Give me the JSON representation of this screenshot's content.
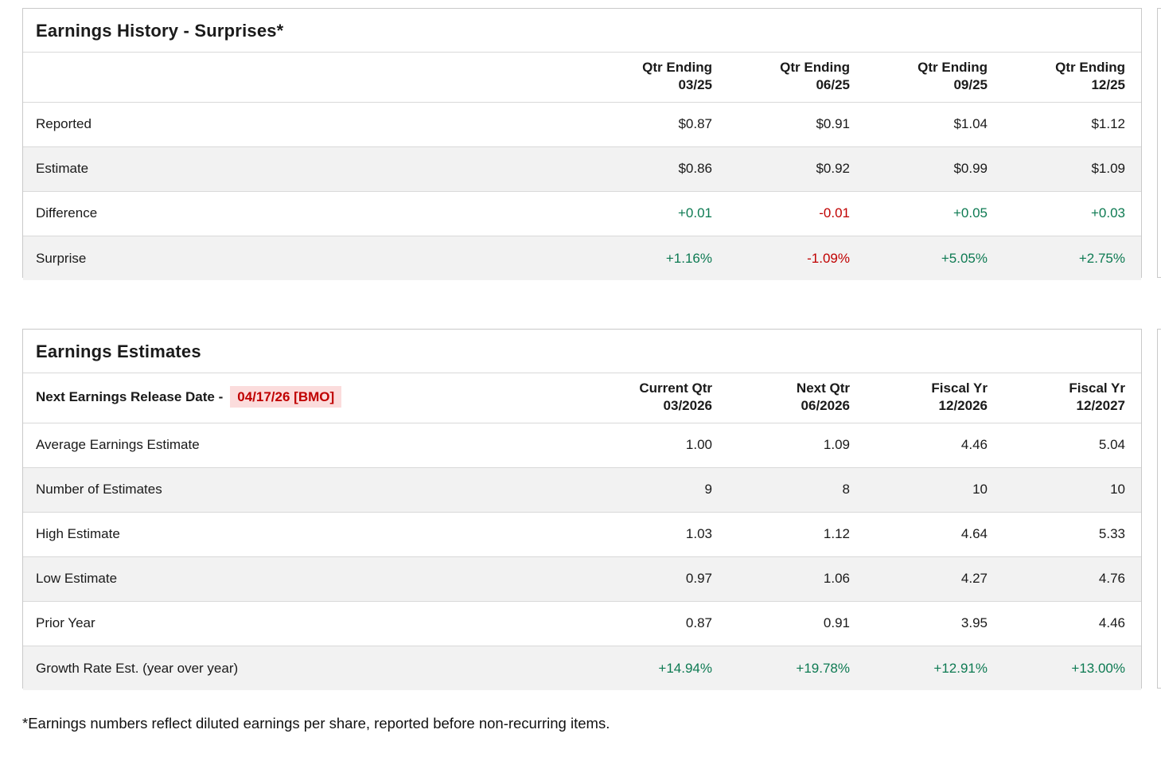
{
  "colors": {
    "positive": "#0d7a52",
    "negative": "#c00000",
    "highlight_bg": "#fbdcdc",
    "card_border": "#c9c9c9",
    "alt_row_bg": "#f2f2f2"
  },
  "earnings_history": {
    "title": "Earnings History - Surprises*",
    "columns": [
      {
        "top": "Qtr Ending",
        "bottom": "03/25"
      },
      {
        "top": "Qtr Ending",
        "bottom": "06/25"
      },
      {
        "top": "Qtr Ending",
        "bottom": "09/25"
      },
      {
        "top": "Qtr Ending",
        "bottom": "12/25"
      }
    ],
    "rows": [
      {
        "label": "Reported",
        "values": [
          "$0.87",
          "$0.91",
          "$1.04",
          "$1.12"
        ]
      },
      {
        "label": "Estimate",
        "values": [
          "$0.86",
          "$0.92",
          "$0.99",
          "$1.09"
        ]
      },
      {
        "label": "Difference",
        "values": [
          "+0.01",
          "-0.01",
          "+0.05",
          "+0.03"
        ],
        "tones": [
          "p",
          "n",
          "p",
          "p"
        ]
      },
      {
        "label": "Surprise",
        "values": [
          "+1.16%",
          "-1.09%",
          "+5.05%",
          "+2.75%"
        ],
        "tones": [
          "p",
          "n",
          "p",
          "p"
        ]
      }
    ]
  },
  "earnings_estimates": {
    "title": "Earnings Estimates",
    "corner": {
      "label": "Next Earnings Release Date -",
      "value": "04/17/26 [BMO]"
    },
    "columns": [
      {
        "top": "Current Qtr",
        "bottom": "03/2026"
      },
      {
        "top": "Next Qtr",
        "bottom": "06/2026"
      },
      {
        "top": "Fiscal Yr",
        "bottom": "12/2026"
      },
      {
        "top": "Fiscal Yr",
        "bottom": "12/2027"
      }
    ],
    "rows": [
      {
        "label": "Average Earnings Estimate",
        "values": [
          "1.00",
          "1.09",
          "4.46",
          "5.04"
        ]
      },
      {
        "label": "Number of Estimates",
        "values": [
          "9",
          "8",
          "10",
          "10"
        ]
      },
      {
        "label": "High Estimate",
        "values": [
          "1.03",
          "1.12",
          "4.64",
          "5.33"
        ]
      },
      {
        "label": "Low Estimate",
        "values": [
          "0.97",
          "1.06",
          "4.27",
          "4.76"
        ]
      },
      {
        "label": "Prior Year",
        "values": [
          "0.87",
          "0.91",
          "3.95",
          "4.46"
        ]
      },
      {
        "label": "Growth Rate Est. (year over year)",
        "values": [
          "+14.94%",
          "+19.78%",
          "+12.91%",
          "+13.00%"
        ],
        "tones": [
          "p",
          "p",
          "p",
          "p"
        ]
      }
    ]
  },
  "footnote": "*Earnings numbers reflect diluted earnings per share, reported before non-recurring items."
}
